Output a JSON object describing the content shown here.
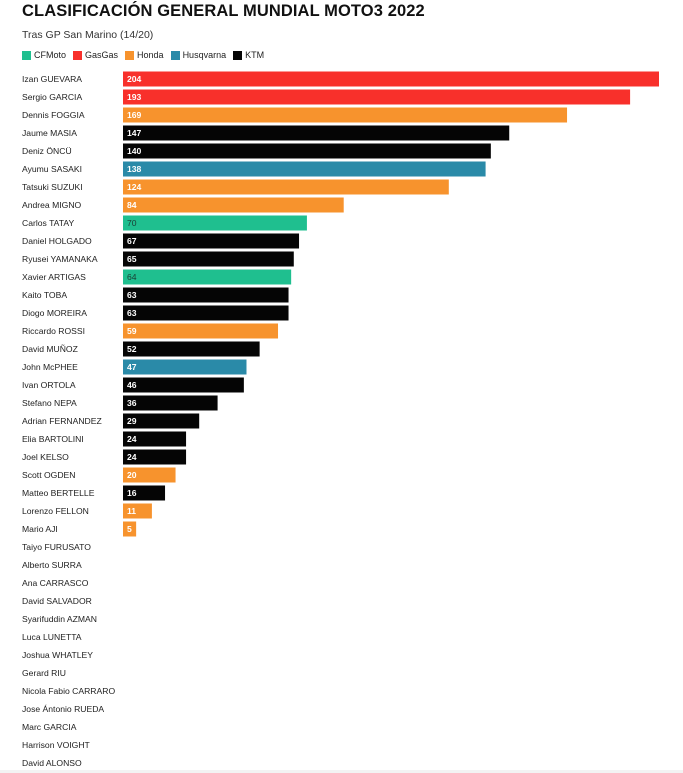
{
  "chart_data": {
    "type": "bar",
    "orientation": "horizontal",
    "title": "CLASIFICACIÓN GENERAL MUNDIAL MOTO3 2022",
    "subtitle": "Tras GP San Marino (14/20)",
    "xlabel": "",
    "ylabel": "",
    "xlim": [
      0,
      204
    ],
    "grid": false,
    "legend": "top-left",
    "legend_entries": [
      {
        "name": "CFMoto",
        "color": "#1fbf8f"
      },
      {
        "name": "GasGas",
        "color": "#f8302b"
      },
      {
        "name": "Honda",
        "color": "#f7932d"
      },
      {
        "name": "Husqvarna",
        "color": "#2a8aa8"
      },
      {
        "name": "KTM",
        "color": "#050505"
      }
    ],
    "categories": [
      "Izan GUEVARA",
      "Sergio GARCIA",
      "Dennis FOGGIA",
      "Jaume MASIA",
      "Deniz ÖNCÜ",
      "Ayumu SASAKI",
      "Tatsuki SUZUKI",
      "Andrea MIGNO",
      "Carlos TATAY",
      "Daniel HOLGADO",
      "Ryusei YAMANAKA",
      "Xavier ARTIGAS",
      "Kaito TOBA",
      "Diogo MOREIRA",
      "Riccardo ROSSI",
      "David MUÑOZ",
      "John McPHEE",
      "Ivan ORTOLA",
      "Stefano NEPA",
      "Adrian FERNANDEZ",
      "Elia BARTOLINI",
      "Joel KELSO",
      "Scott OGDEN",
      "Matteo BERTELLE",
      "Lorenzo FELLON",
      "Mario AJI",
      "Taiyo FURUSATO",
      "Alberto SURRA",
      "Ana CARRASCO",
      "David SALVADOR",
      "Syarifuddin AZMAN",
      "Luca LUNETTA",
      "Joshua WHATLEY",
      "Gerard RIU",
      "Nicola Fabio CARRARO",
      "Jose Ántonio RUEDA",
      "Marc GARCIA",
      "Harrison VOIGHT",
      "David ALONSO"
    ],
    "values": [
      204,
      193,
      169,
      147,
      140,
      138,
      124,
      84,
      70,
      67,
      65,
      64,
      63,
      63,
      59,
      52,
      47,
      46,
      36,
      29,
      24,
      24,
      20,
      16,
      11,
      5,
      null,
      null,
      null,
      null,
      null,
      null,
      null,
      null,
      null,
      null,
      null,
      null,
      null
    ],
    "brands": [
      "GasGas",
      "GasGas",
      "Honda",
      "KTM",
      "KTM",
      "Husqvarna",
      "Honda",
      "Honda",
      "CFMoto",
      "KTM",
      "KTM",
      "CFMoto",
      "KTM",
      "KTM",
      "Honda",
      "KTM",
      "Husqvarna",
      "KTM",
      "KTM",
      "KTM",
      "KTM",
      "KTM",
      "Honda",
      "KTM",
      "Honda",
      "Honda",
      null,
      null,
      null,
      null,
      null,
      null,
      null,
      null,
      null,
      null,
      null,
      null,
      null
    ]
  }
}
